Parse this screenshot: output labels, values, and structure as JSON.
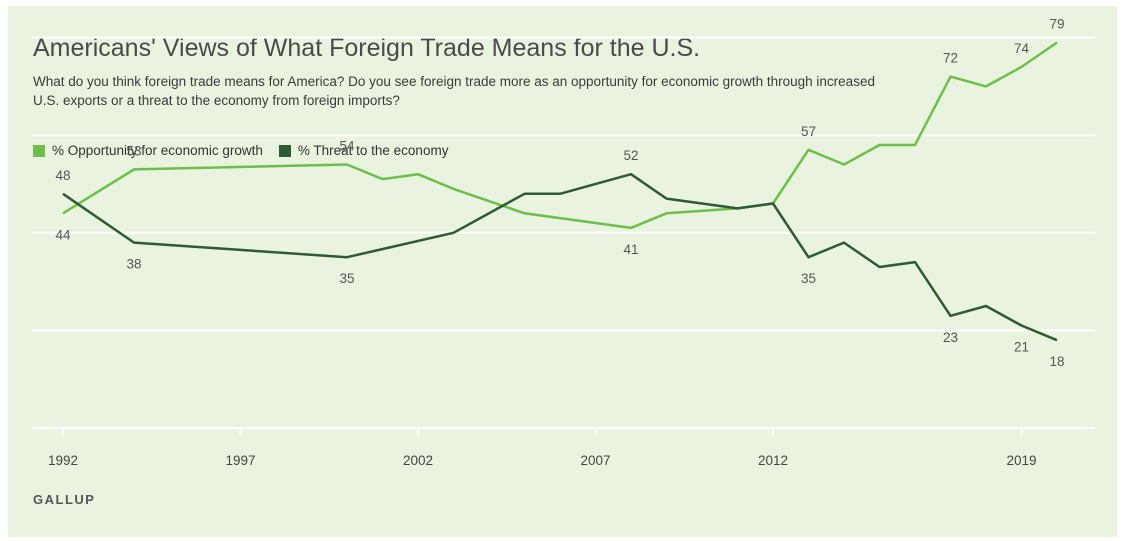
{
  "chart_data": {
    "type": "line",
    "title": "Americans' Views of What Foreign Trade Means for the U.S.",
    "subtitle": "What do you think foreign trade means for America? Do you see foreign trade more as an opportunity for economic growth through increased U.S. exports or a threat to the economy from foreign imports?",
    "xlabel": "",
    "ylabel": "",
    "xlim": [
      1992,
      2020
    ],
    "ylim": [
      0,
      100
    ],
    "x_ticks": [
      1992,
      1997,
      2002,
      2007,
      2012,
      2019
    ],
    "grid": true,
    "legend_position": "top-left",
    "series": [
      {
        "name": "% Opportunity for economic growth",
        "color": "#6cc04a",
        "points": [
          {
            "x": 1992,
            "y": 44,
            "label": "44"
          },
          {
            "x": 1994,
            "y": 53,
            "label": "53"
          },
          {
            "x": 2000,
            "y": 54,
            "label": "54"
          },
          {
            "x": 2001,
            "y": 51
          },
          {
            "x": 2002,
            "y": 52
          },
          {
            "x": 2003,
            "y": 49
          },
          {
            "x": 2005,
            "y": 44
          },
          {
            "x": 2008,
            "y": 41,
            "label": "41"
          },
          {
            "x": 2009,
            "y": 44
          },
          {
            "x": 2011,
            "y": 45
          },
          {
            "x": 2012,
            "y": 46
          },
          {
            "x": 2013,
            "y": 57,
            "label": "57"
          },
          {
            "x": 2014,
            "y": 54
          },
          {
            "x": 2015,
            "y": 58
          },
          {
            "x": 2016,
            "y": 58
          },
          {
            "x": 2017,
            "y": 72,
            "label": "72"
          },
          {
            "x": 2018,
            "y": 70
          },
          {
            "x": 2019,
            "y": 74,
            "label": "74"
          },
          {
            "x": 2020,
            "y": 79,
            "label": "79"
          }
        ]
      },
      {
        "name": "% Threat to the economy",
        "color": "#2e5a34",
        "points": [
          {
            "x": 1992,
            "y": 48,
            "label": "48"
          },
          {
            "x": 1994,
            "y": 38,
            "label": "38"
          },
          {
            "x": 2000,
            "y": 35,
            "label": "35"
          },
          {
            "x": 2003,
            "y": 40
          },
          {
            "x": 2005,
            "y": 48
          },
          {
            "x": 2006,
            "y": 48
          },
          {
            "x": 2008,
            "y": 52,
            "label": "52"
          },
          {
            "x": 2009,
            "y": 47
          },
          {
            "x": 2011,
            "y": 45
          },
          {
            "x": 2012,
            "y": 46
          },
          {
            "x": 2013,
            "y": 35,
            "label": "35"
          },
          {
            "x": 2014,
            "y": 38
          },
          {
            "x": 2015,
            "y": 33
          },
          {
            "x": 2016,
            "y": 34
          },
          {
            "x": 2017,
            "y": 23,
            "label": "23"
          },
          {
            "x": 2018,
            "y": 25
          },
          {
            "x": 2019,
            "y": 21,
            "label": "21"
          },
          {
            "x": 2020,
            "y": 18,
            "label": "18"
          }
        ]
      }
    ]
  },
  "source": "GALLUP"
}
